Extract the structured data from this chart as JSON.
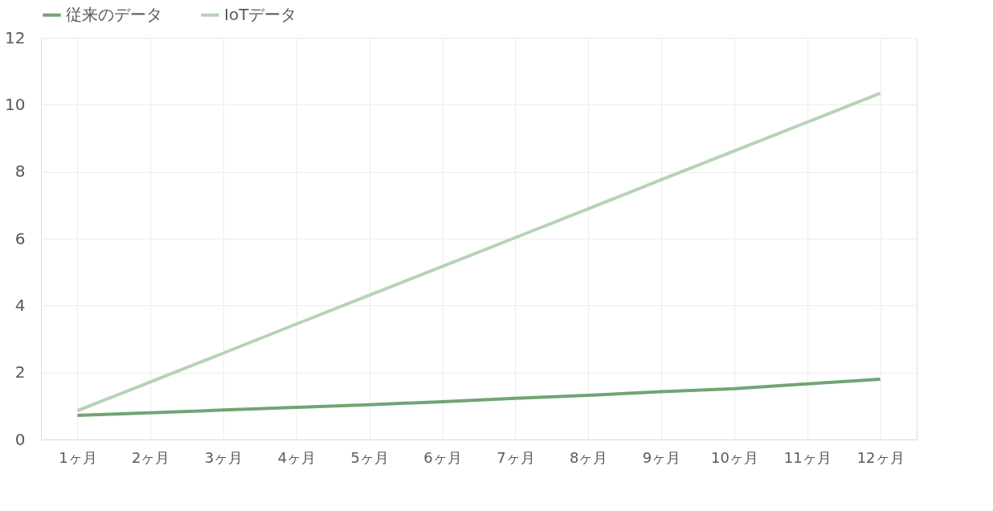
{
  "chart_data": {
    "type": "line",
    "categories": [
      "1ヶ月",
      "2ヶ月",
      "3ヶ月",
      "4ヶ月",
      "5ヶ月",
      "6ヶ月",
      "7ヶ月",
      "8ヶ月",
      "9ヶ月",
      "10ヶ月",
      "11ヶ月",
      "12ヶ月"
    ],
    "series": [
      {
        "name": "従来のデータ",
        "color": "#70a574",
        "values": [
          0.72,
          0.8,
          0.88,
          0.96,
          1.04,
          1.13,
          1.23,
          1.32,
          1.43,
          1.52,
          1.66,
          1.8
        ]
      },
      {
        "name": "IoTデータ",
        "color": "#b5d3b5",
        "values": [
          0.86,
          1.72,
          2.58,
          3.45,
          4.31,
          5.17,
          6.03,
          6.89,
          7.76,
          8.62,
          9.48,
          10.34
        ]
      }
    ],
    "ylim": [
      0,
      12
    ],
    "yticks": [
      0,
      2,
      4,
      6,
      8,
      10,
      12
    ],
    "grid": true,
    "legend": "top",
    "marker": "none",
    "line_style": "solid"
  }
}
